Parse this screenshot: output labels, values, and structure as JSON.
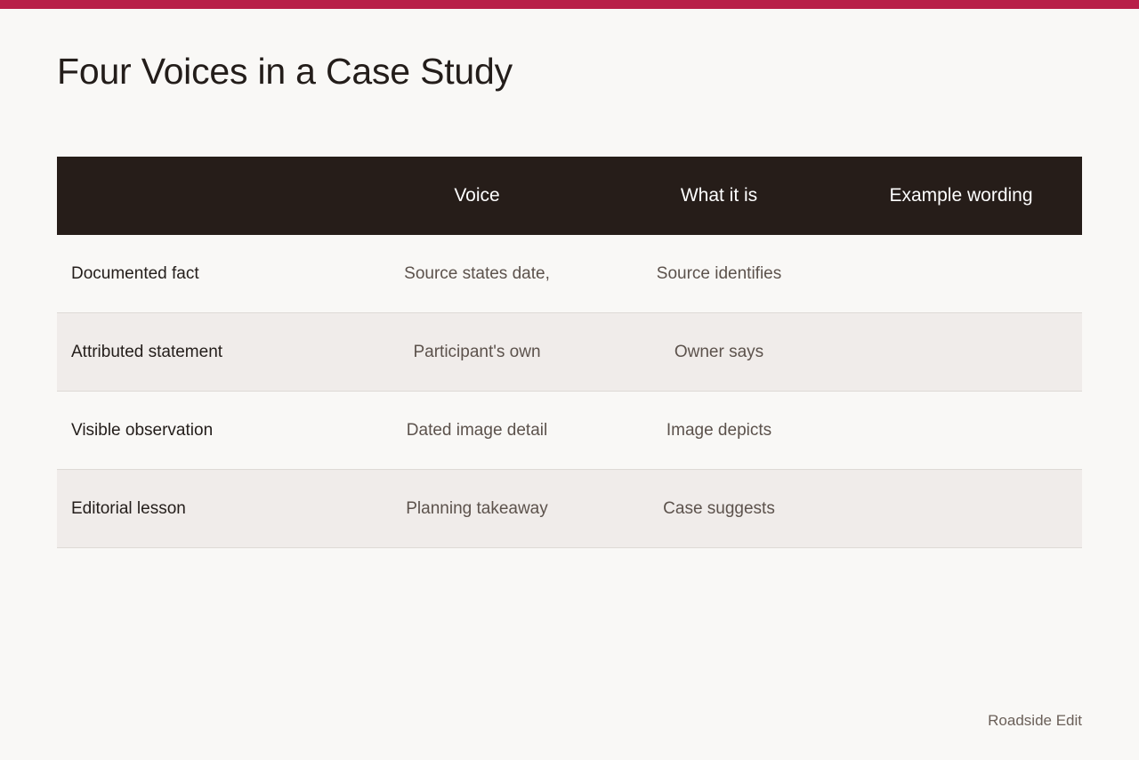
{
  "accent_color": "#b81f48",
  "header_bg_color": "#261d19",
  "title": "Four Voices in a Case Study",
  "table": {
    "headers": [
      "",
      "Voice",
      "What it is",
      "Example wording"
    ],
    "rows": [
      {
        "label": "Documented fact",
        "voice": "Source states date,",
        "what": "Source identifies",
        "example": ""
      },
      {
        "label": "Attributed statement",
        "voice": "Participant's own",
        "what": "Owner says",
        "example": ""
      },
      {
        "label": "Visible observation",
        "voice": "Dated image detail",
        "what": "Image depicts",
        "example": ""
      },
      {
        "label": "Editorial lesson",
        "voice": "Planning takeaway",
        "what": "Case suggests",
        "example": ""
      }
    ]
  },
  "footer": {
    "credit": "Roadside Edit"
  }
}
